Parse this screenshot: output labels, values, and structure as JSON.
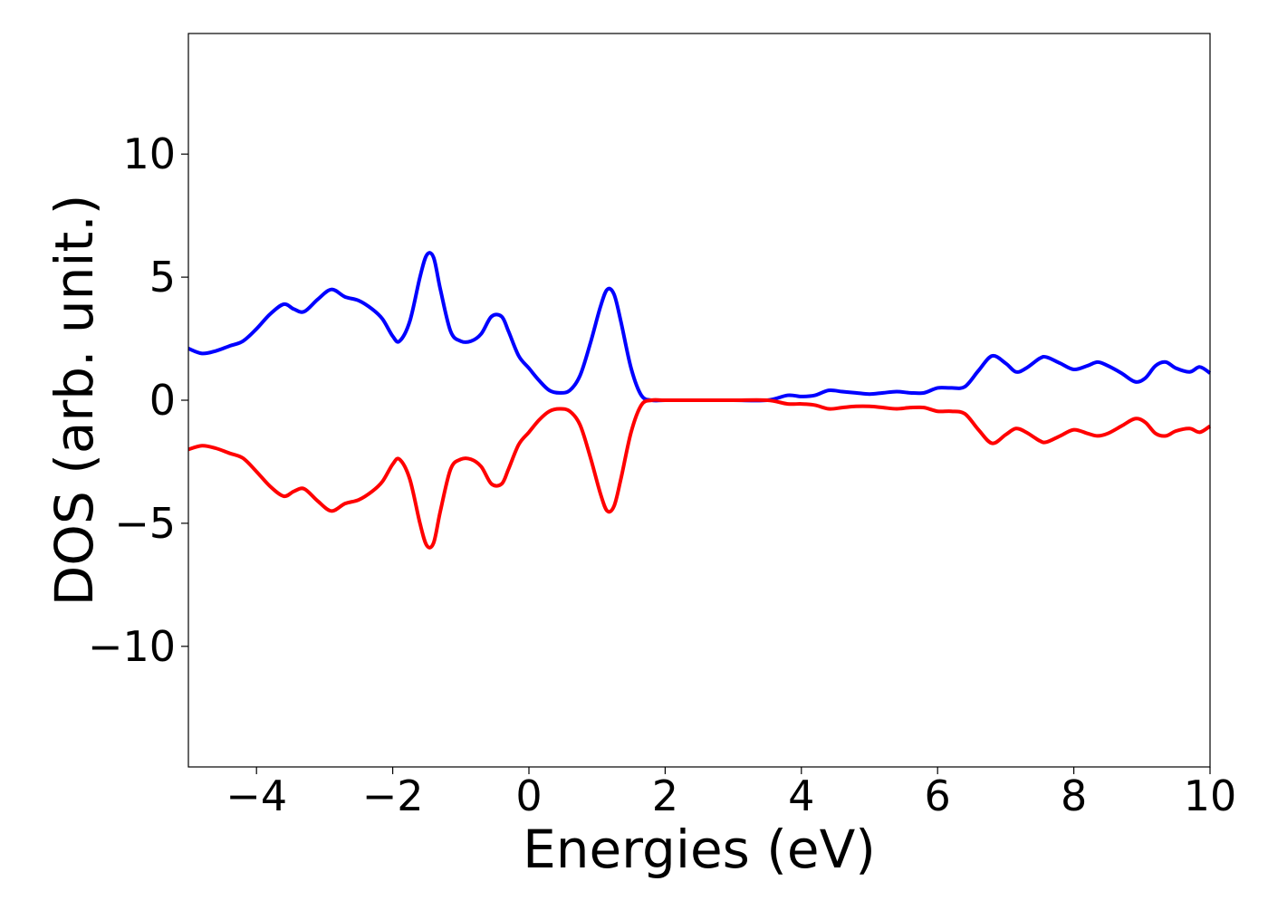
{
  "chart_data": {
    "type": "line",
    "title": "",
    "xlabel": "Energies (eV)",
    "ylabel": "DOS (arb. unit.)",
    "xlim": [
      -5,
      10
    ],
    "ylim": [
      -14.9,
      14.9
    ],
    "grid": false,
    "legend": "none",
    "x_ticks": [
      {
        "value": -4,
        "label": "−4"
      },
      {
        "value": -2,
        "label": "−2"
      },
      {
        "value": 0,
        "label": "0"
      },
      {
        "value": 2,
        "label": "2"
      },
      {
        "value": 4,
        "label": "4"
      },
      {
        "value": 6,
        "label": "6"
      },
      {
        "value": 8,
        "label": "8"
      },
      {
        "value": 10,
        "label": "10"
      }
    ],
    "y_ticks": [
      {
        "value": -10,
        "label": "−10"
      },
      {
        "value": -5,
        "label": "−5"
      },
      {
        "value": 0,
        "label": "0"
      },
      {
        "value": 5,
        "label": "5"
      },
      {
        "value": 10,
        "label": "10"
      }
    ],
    "series": [
      {
        "color": "#0000ff",
        "x": [
          -5.0,
          -4.8,
          -4.6,
          -4.4,
          -4.2,
          -4.0,
          -3.8,
          -3.6,
          -3.45,
          -3.3,
          -3.1,
          -2.9,
          -2.7,
          -2.5,
          -2.3,
          -2.15,
          -2.0,
          -1.9,
          -1.75,
          -1.6,
          -1.5,
          -1.4,
          -1.3,
          -1.15,
          -1.0,
          -0.85,
          -0.7,
          -0.55,
          -0.4,
          -0.3,
          -0.15,
          0.0,
          0.15,
          0.3,
          0.45,
          0.6,
          0.75,
          0.9,
          1.05,
          1.15,
          1.25,
          1.35,
          1.5,
          1.65,
          1.8,
          2.0,
          2.5,
          3.0,
          3.5,
          3.8,
          4.0,
          4.2,
          4.4,
          4.6,
          4.8,
          5.0,
          5.2,
          5.4,
          5.6,
          5.8,
          6.0,
          6.2,
          6.4,
          6.6,
          6.8,
          7.0,
          7.15,
          7.3,
          7.5,
          7.6,
          7.8,
          8.0,
          8.2,
          8.35,
          8.5,
          8.7,
          8.9,
          9.05,
          9.2,
          9.35,
          9.5,
          9.7,
          9.85,
          10.0
        ],
        "y": [
          2.1,
          1.9,
          2.0,
          2.2,
          2.4,
          2.9,
          3.5,
          3.9,
          3.7,
          3.6,
          4.1,
          4.5,
          4.2,
          4.05,
          3.7,
          3.3,
          2.6,
          2.4,
          3.2,
          5.0,
          5.9,
          5.8,
          4.5,
          2.8,
          2.4,
          2.4,
          2.7,
          3.4,
          3.4,
          2.8,
          1.8,
          1.3,
          0.8,
          0.4,
          0.3,
          0.4,
          1.0,
          2.3,
          3.8,
          4.5,
          4.3,
          3.2,
          1.3,
          0.2,
          0.0,
          0.0,
          0.0,
          0.0,
          0.0,
          0.2,
          0.15,
          0.2,
          0.4,
          0.35,
          0.3,
          0.25,
          0.3,
          0.35,
          0.3,
          0.3,
          0.5,
          0.5,
          0.55,
          1.2,
          1.8,
          1.5,
          1.15,
          1.3,
          1.7,
          1.75,
          1.5,
          1.25,
          1.4,
          1.55,
          1.4,
          1.1,
          0.75,
          0.9,
          1.4,
          1.55,
          1.3,
          1.15,
          1.35,
          1.1
        ]
      },
      {
        "color": "#ff0000",
        "x": [
          -5.0,
          -4.8,
          -4.6,
          -4.4,
          -4.2,
          -4.0,
          -3.8,
          -3.6,
          -3.45,
          -3.3,
          -3.1,
          -2.9,
          -2.7,
          -2.5,
          -2.3,
          -2.15,
          -2.0,
          -1.9,
          -1.75,
          -1.6,
          -1.5,
          -1.4,
          -1.3,
          -1.15,
          -1.0,
          -0.85,
          -0.7,
          -0.55,
          -0.4,
          -0.3,
          -0.15,
          0.0,
          0.15,
          0.3,
          0.45,
          0.6,
          0.75,
          0.9,
          1.05,
          1.15,
          1.25,
          1.35,
          1.5,
          1.65,
          1.8,
          2.0,
          2.5,
          3.0,
          3.5,
          3.8,
          4.0,
          4.2,
          4.4,
          4.6,
          4.8,
          5.0,
          5.2,
          5.4,
          5.6,
          5.8,
          6.0,
          6.2,
          6.4,
          6.6,
          6.8,
          7.0,
          7.15,
          7.3,
          7.5,
          7.6,
          7.8,
          8.0,
          8.2,
          8.35,
          8.5,
          8.7,
          8.9,
          9.05,
          9.2,
          9.35,
          9.5,
          9.7,
          9.85,
          10.0
        ],
        "y": [
          -2.0,
          -1.85,
          -1.95,
          -2.15,
          -2.35,
          -2.9,
          -3.5,
          -3.9,
          -3.7,
          -3.6,
          -4.1,
          -4.5,
          -4.2,
          -4.05,
          -3.7,
          -3.3,
          -2.6,
          -2.4,
          -3.2,
          -5.0,
          -5.9,
          -5.8,
          -4.5,
          -2.8,
          -2.4,
          -2.4,
          -2.7,
          -3.4,
          -3.4,
          -2.8,
          -1.8,
          -1.3,
          -0.8,
          -0.45,
          -0.35,
          -0.45,
          -1.0,
          -2.3,
          -3.8,
          -4.5,
          -4.3,
          -3.2,
          -1.3,
          -0.2,
          0.0,
          0.0,
          0.0,
          0.0,
          0.0,
          -0.15,
          -0.15,
          -0.2,
          -0.35,
          -0.3,
          -0.25,
          -0.25,
          -0.3,
          -0.35,
          -0.3,
          -0.3,
          -0.45,
          -0.45,
          -0.55,
          -1.2,
          -1.75,
          -1.4,
          -1.15,
          -1.3,
          -1.65,
          -1.7,
          -1.45,
          -1.2,
          -1.35,
          -1.45,
          -1.35,
          -1.05,
          -0.75,
          -0.9,
          -1.35,
          -1.45,
          -1.25,
          -1.15,
          -1.3,
          -1.05
        ]
      }
    ]
  }
}
